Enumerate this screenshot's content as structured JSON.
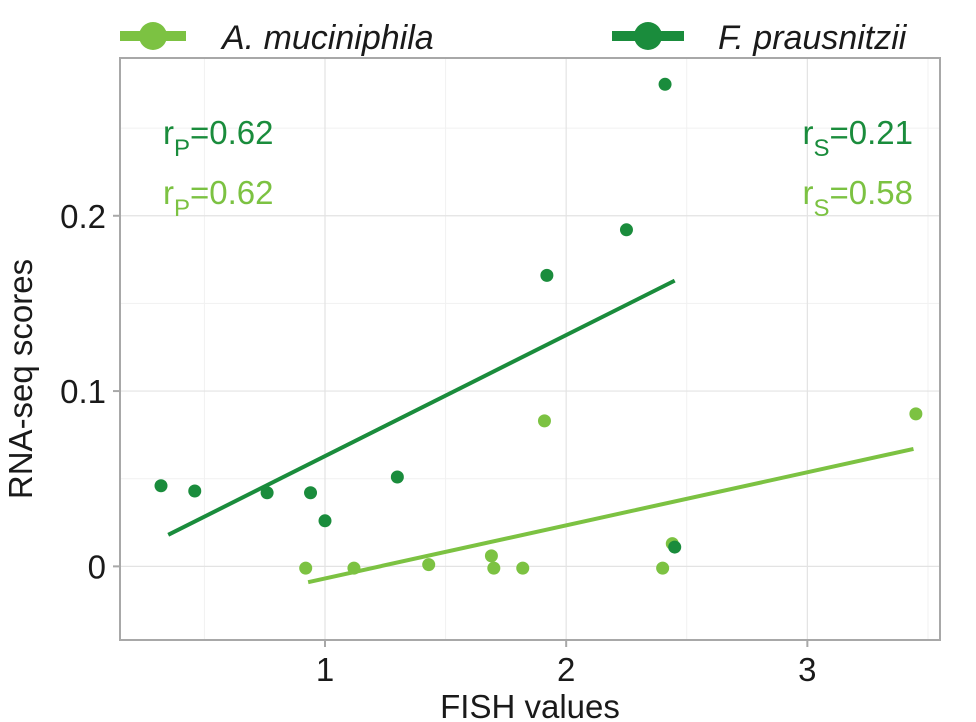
{
  "chart_data": {
    "type": "scatter",
    "xlabel": "FISH values",
    "ylabel": "RNA-seq scores",
    "xlim": [
      0.15,
      3.55
    ],
    "ylim": [
      -0.042,
      0.29
    ],
    "x_ticks": [
      {
        "value": 1,
        "label": "1"
      },
      {
        "value": 2,
        "label": "2"
      },
      {
        "value": 3,
        "label": "3"
      }
    ],
    "y_ticks": [
      {
        "value": 0,
        "label": "0"
      },
      {
        "value": 0.1,
        "label": "0.1"
      },
      {
        "value": 0.2,
        "label": "0.2"
      }
    ],
    "grid": true,
    "legend_position": "top",
    "series": [
      {
        "name": "A. muciniphila",
        "color": "#7cc242",
        "points": [
          {
            "x": 0.92,
            "y": -0.001
          },
          {
            "x": 1.12,
            "y": -0.001
          },
          {
            "x": 1.43,
            "y": 0.001
          },
          {
            "x": 1.69,
            "y": 0.006
          },
          {
            "x": 1.7,
            "y": -0.001
          },
          {
            "x": 1.82,
            "y": -0.001
          },
          {
            "x": 1.91,
            "y": 0.083
          },
          {
            "x": 2.4,
            "y": -0.001
          },
          {
            "x": 2.44,
            "y": 0.013
          },
          {
            "x": 3.45,
            "y": 0.087
          }
        ],
        "fit": {
          "x": [
            0.93,
            3.44
          ],
          "y": [
            -0.009,
            0.067
          ]
        }
      },
      {
        "name": "F. prausnitzii",
        "color": "#1a8c3c",
        "points": [
          {
            "x": 0.32,
            "y": 0.046
          },
          {
            "x": 0.46,
            "y": 0.043
          },
          {
            "x": 0.76,
            "y": 0.042
          },
          {
            "x": 0.94,
            "y": 0.042
          },
          {
            "x": 1.0,
            "y": 0.026
          },
          {
            "x": 1.3,
            "y": 0.051
          },
          {
            "x": 1.92,
            "y": 0.166
          },
          {
            "x": 2.25,
            "y": 0.192
          },
          {
            "x": 2.41,
            "y": 0.275
          },
          {
            "x": 2.45,
            "y": 0.011
          }
        ],
        "fit": {
          "x": [
            0.35,
            2.45
          ],
          "y": [
            0.018,
            0.163
          ]
        }
      }
    ],
    "annotations": [
      {
        "series": 1,
        "pos": "top-left",
        "sym": "r",
        "sub": "P",
        "value": "=0.62"
      },
      {
        "series": 0,
        "pos": "top-left",
        "sym": "r",
        "sub": "P",
        "value": "=0.62"
      },
      {
        "series": 1,
        "pos": "top-right",
        "sym": "r",
        "sub": "S",
        "value": "=0.21"
      },
      {
        "series": 0,
        "pos": "top-right",
        "sym": "r",
        "sub": "S",
        "value": "=0.58"
      }
    ]
  }
}
